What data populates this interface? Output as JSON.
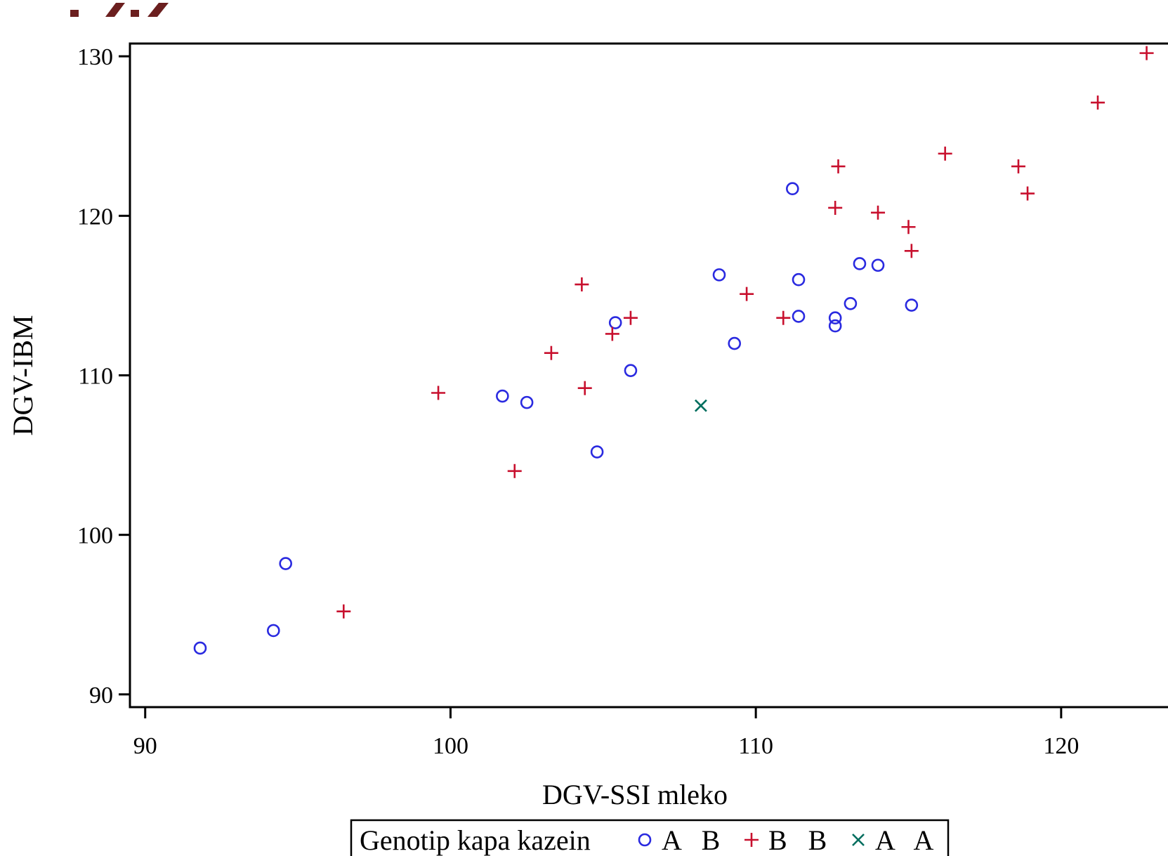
{
  "chart_data": {
    "type": "scatter",
    "xlabel": "DGV-SSI mleko",
    "ylabel": "DGV-IBM",
    "xlim": [
      89.5,
      123.5
    ],
    "ylim": [
      89.2,
      130.8
    ],
    "x_ticks": [
      "90",
      "100",
      "110",
      "120"
    ],
    "y_ticks": [
      "90",
      "100",
      "110",
      "120",
      "130"
    ],
    "grid": false,
    "legend": {
      "placement": "bottom",
      "title": "Genotip kapa kazein",
      "entries": [
        "A B",
        "B B",
        "A A"
      ]
    },
    "series": [
      {
        "name": "A B",
        "marker": "circle",
        "color": "#2a2ae0",
        "points": [
          [
            91.8,
            92.9
          ],
          [
            94.2,
            94.0
          ],
          [
            94.6,
            98.2
          ],
          [
            101.7,
            108.7
          ],
          [
            102.5,
            108.3
          ],
          [
            104.8,
            105.2
          ],
          [
            105.4,
            113.3
          ],
          [
            105.9,
            110.3
          ],
          [
            108.8,
            116.3
          ],
          [
            109.3,
            112.0
          ],
          [
            111.2,
            121.7
          ],
          [
            111.4,
            116.0
          ],
          [
            111.4,
            113.7
          ],
          [
            112.6,
            113.6
          ],
          [
            112.6,
            113.1
          ],
          [
            113.1,
            114.5
          ],
          [
            113.4,
            117.0
          ],
          [
            114.0,
            116.9
          ],
          [
            115.1,
            114.4
          ]
        ]
      },
      {
        "name": "B B",
        "marker": "plus",
        "color": "#c8102e",
        "points": [
          [
            96.5,
            95.2
          ],
          [
            99.6,
            108.9
          ],
          [
            102.1,
            104.0
          ],
          [
            103.3,
            111.4
          ],
          [
            104.3,
            115.7
          ],
          [
            104.4,
            109.2
          ],
          [
            105.3,
            112.6
          ],
          [
            105.9,
            113.6
          ],
          [
            109.7,
            115.1
          ],
          [
            110.9,
            113.6
          ],
          [
            112.6,
            120.5
          ],
          [
            112.7,
            123.1
          ],
          [
            114.0,
            120.2
          ],
          [
            115.0,
            119.3
          ],
          [
            115.1,
            117.8
          ],
          [
            116.2,
            123.9
          ],
          [
            118.6,
            123.1
          ],
          [
            118.9,
            121.4
          ],
          [
            121.2,
            127.1
          ],
          [
            122.8,
            130.2
          ]
        ]
      },
      {
        "name": "A A",
        "marker": "x",
        "color": "#006e5e",
        "points": [
          [
            108.2,
            108.1
          ]
        ]
      }
    ]
  }
}
